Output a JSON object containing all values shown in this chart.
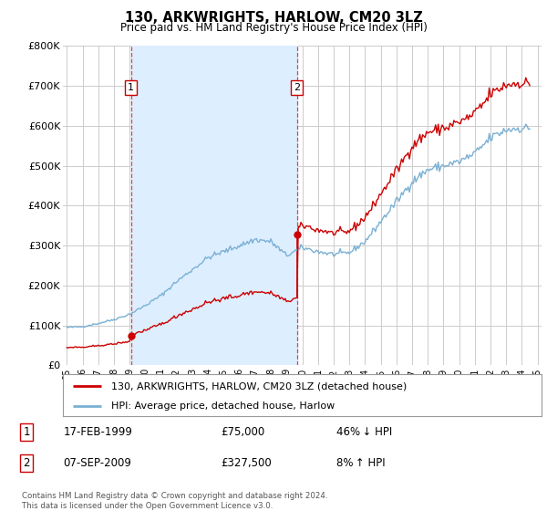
{
  "title": "130, ARKWRIGHTS, HARLOW, CM20 3LZ",
  "subtitle": "Price paid vs. HM Land Registry's House Price Index (HPI)",
  "ylim": [
    0,
    800000
  ],
  "yticks": [
    0,
    100000,
    200000,
    300000,
    400000,
    500000,
    600000,
    700000,
    800000
  ],
  "ytick_labels": [
    "£0",
    "£100K",
    "£200K",
    "£300K",
    "£400K",
    "£500K",
    "£600K",
    "£700K",
    "£800K"
  ],
  "line1_color": "#cc0000",
  "line2_color": "#7ab0d4",
  "vline_color": "#dd4444",
  "shade_color": "#ddeeff",
  "background_color": "#ffffff",
  "grid_color": "#cccccc",
  "transaction1": {
    "date": "17-FEB-1999",
    "price": 75000,
    "pct": "46%",
    "direction": "↓",
    "label": "1"
  },
  "transaction2": {
    "date": "07-SEP-2009",
    "price": 327500,
    "pct": "8%",
    "direction": "↑",
    "label": "2"
  },
  "legend_line1": "130, ARKWRIGHTS, HARLOW, CM20 3LZ (detached house)",
  "legend_line2": "HPI: Average price, detached house, Harlow",
  "footnote": "Contains HM Land Registry data © Crown copyright and database right 2024.\nThis data is licensed under the Open Government Licence v3.0.",
  "vline1_x_yr": 1999.083,
  "vline2_x_yr": 2009.667,
  "marker1_y": 75000,
  "marker2_y": 327500,
  "xlim_left": 1994.75,
  "xlim_right": 2025.25,
  "xtick_years": [
    1995,
    1996,
    1997,
    1998,
    1999,
    2000,
    2001,
    2002,
    2003,
    2004,
    2005,
    2006,
    2007,
    2008,
    2009,
    2010,
    2011,
    2012,
    2013,
    2014,
    2015,
    2016,
    2017,
    2018,
    2019,
    2020,
    2021,
    2022,
    2023,
    2024,
    2025
  ]
}
